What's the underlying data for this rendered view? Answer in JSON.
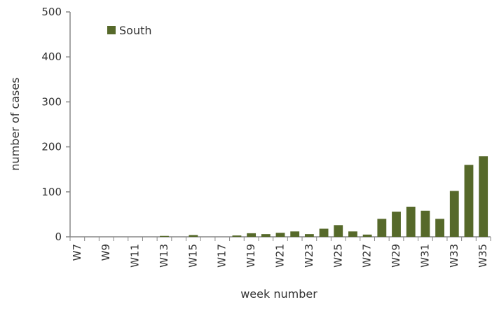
{
  "chart_data": {
    "type": "bar",
    "title": "",
    "xlabel": "week number",
    "ylabel": "number of cases",
    "ylim": [
      0,
      500
    ],
    "yticks": [
      0,
      100,
      200,
      300,
      400,
      500
    ],
    "grid": false,
    "legend_position": "top-left",
    "bar_color": "#56692a",
    "categories": [
      "W7",
      "W8",
      "W9",
      "W10",
      "W11",
      "W12",
      "W13",
      "W14",
      "W15",
      "W16",
      "W17",
      "W18",
      "W19",
      "W20",
      "W21",
      "W22",
      "W23",
      "W24",
      "W25",
      "W26",
      "W27",
      "W28",
      "W29",
      "W30",
      "W31",
      "W32",
      "W33",
      "W34",
      "W35"
    ],
    "xtick_labels": [
      "W7",
      "",
      "W9",
      "",
      "W11",
      "",
      "W13",
      "",
      "W15",
      "",
      "W17",
      "",
      "W19",
      "",
      "W21",
      "",
      "W23",
      "",
      "W25",
      "",
      "W27",
      "",
      "W29",
      "",
      "W31",
      "",
      "W33",
      "",
      "W35"
    ],
    "series": [
      {
        "name": "South",
        "color": "#56692a",
        "values": [
          0,
          0,
          0,
          0,
          0,
          0,
          2,
          0,
          4,
          0,
          0,
          3,
          8,
          6,
          9,
          12,
          6,
          18,
          26,
          12,
          5,
          40,
          56,
          67,
          58,
          40,
          102,
          160,
          179
        ]
      }
    ]
  }
}
